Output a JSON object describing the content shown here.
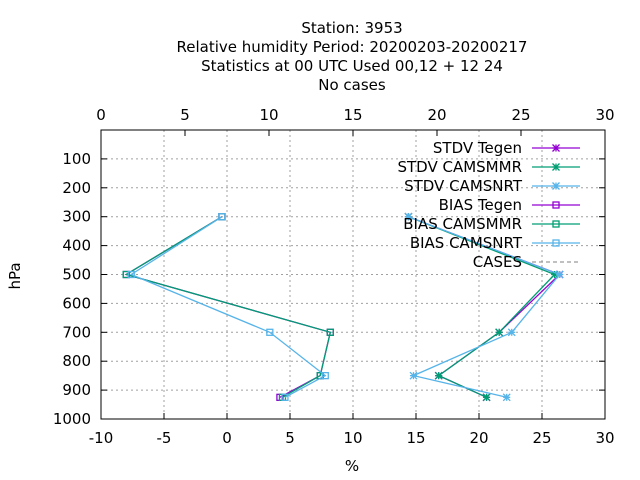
{
  "chart_data": {
    "type": "line",
    "title_lines": [
      "Station:     3953",
      "Relative humidity  Period: 20200203-20200217",
      "Statistics at 00 UTC  Used  00,12  + 12 24",
      "No cases"
    ],
    "xlabel": "%",
    "ylabel": "hPa",
    "xlim": [
      -10,
      30
    ],
    "x2lim": [
      0,
      30
    ],
    "ylim": [
      1000,
      0
    ],
    "x_ticks": [
      "-10",
      "-5",
      "0",
      "5",
      "10",
      "15",
      "20",
      "25",
      "30"
    ],
    "x2_ticks": [
      "0",
      "5",
      "10",
      "15",
      "20",
      "25",
      "30"
    ],
    "y_ticks": [
      "100",
      "200",
      "300",
      "400",
      "500",
      "600",
      "700",
      "800",
      "900",
      "1000"
    ],
    "grid": true,
    "legend_position": "top-right",
    "series": [
      {
        "name": "STDV Tegen",
        "color": "#9400d3",
        "marker": "x-star",
        "dash": false,
        "points": [
          [
            14.4,
            300
          ],
          [
            26.4,
            500
          ],
          [
            21.6,
            700
          ],
          [
            16.8,
            850
          ],
          [
            20.6,
            925
          ]
        ]
      },
      {
        "name": "STDV CAMSMMR",
        "color": "#009e73",
        "marker": "x-star",
        "dash": false,
        "points": [
          [
            14.4,
            300
          ],
          [
            26.0,
            500
          ],
          [
            21.6,
            700
          ],
          [
            16.8,
            850
          ],
          [
            20.6,
            925
          ]
        ]
      },
      {
        "name": "STDV CAMSNRT",
        "color": "#56b4e9",
        "marker": "x-star",
        "dash": false,
        "points": [
          [
            14.4,
            300
          ],
          [
            26.4,
            500
          ],
          [
            22.6,
            700
          ],
          [
            14.8,
            850
          ],
          [
            22.2,
            925
          ]
        ]
      },
      {
        "name": "BIAS Tegen",
        "color": "#9400d3",
        "marker": "square",
        "dash": false,
        "points": [
          [
            -0.4,
            300
          ],
          [
            -8.0,
            500
          ],
          [
            8.2,
            700
          ],
          [
            7.4,
            850
          ],
          [
            4.2,
            925
          ]
        ]
      },
      {
        "name": "BIAS CAMSMMR",
        "color": "#009e73",
        "marker": "square",
        "dash": false,
        "points": [
          [
            -0.4,
            300
          ],
          [
            -8.0,
            500
          ],
          [
            8.2,
            700
          ],
          [
            7.4,
            850
          ],
          [
            4.4,
            925
          ]
        ]
      },
      {
        "name": "BIAS CAMSNRT",
        "color": "#56b4e9",
        "marker": "square",
        "dash": false,
        "points": [
          [
            -0.4,
            300
          ],
          [
            -7.6,
            500
          ],
          [
            3.4,
            700
          ],
          [
            7.8,
            850
          ],
          [
            4.6,
            925
          ]
        ]
      },
      {
        "name": "CASES",
        "color": "#808080",
        "marker": "none",
        "dash": true,
        "points": []
      }
    ]
  }
}
